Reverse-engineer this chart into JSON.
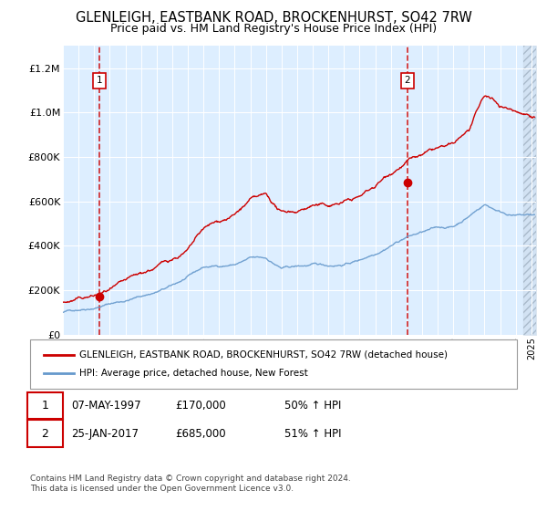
{
  "title": "GLENLEIGH, EASTBANK ROAD, BROCKENHURST, SO42 7RW",
  "subtitle": "Price paid vs. HM Land Registry's House Price Index (HPI)",
  "legend_line1": "GLENLEIGH, EASTBANK ROAD, BROCKENHURST, SO42 7RW (detached house)",
  "legend_line2": "HPI: Average price, detached house, New Forest",
  "annotation1_date": "07-MAY-1997",
  "annotation1_price": "£170,000",
  "annotation1_pct": "50% ↑ HPI",
  "annotation2_date": "25-JAN-2017",
  "annotation2_price": "£685,000",
  "annotation2_pct": "51% ↑ HPI",
  "copyright": "Contains HM Land Registry data © Crown copyright and database right 2024.\nThis data is licensed under the Open Government Licence v3.0.",
  "red_line_color": "#cc0000",
  "blue_line_color": "#6699cc",
  "plot_bg_color": "#ddeeff",
  "dashed_line_color": "#cc0000",
  "marker_color": "#cc0000",
  "ylim_min": 0,
  "ylim_max": 1300000,
  "sale1_year": 1997.35,
  "sale1_price": 170000,
  "sale2_year": 2017.07,
  "sale2_price": 685000,
  "hpi_waypoints_x": [
    1995,
    1996,
    1997,
    1998,
    1999,
    2000,
    2001,
    2002,
    2003,
    2004,
    2005,
    2006,
    2007,
    2008,
    2009,
    2010,
    2011,
    2012,
    2013,
    2014,
    2015,
    2016,
    2017,
    2018,
    2019,
    2020,
    2021,
    2022,
    2023,
    2024,
    2025
  ],
  "hpi_waypoints_y": [
    100000,
    115000,
    130000,
    150000,
    165000,
    185000,
    205000,
    230000,
    265000,
    305000,
    310000,
    320000,
    345000,
    340000,
    295000,
    300000,
    305000,
    300000,
    310000,
    330000,
    365000,
    410000,
    450000,
    470000,
    485000,
    490000,
    540000,
    595000,
    565000,
    550000,
    548000
  ],
  "prop_waypoints_x": [
    1995,
    1996,
    1997,
    1997.35,
    1998,
    1999,
    2000,
    2001,
    2002,
    2003,
    2004,
    2005,
    2006,
    2007,
    2008,
    2009,
    2010,
    2011,
    2012,
    2013,
    2014,
    2015,
    2016,
    2017.07,
    2018,
    2019,
    2020,
    2021,
    2022,
    2023,
    2024,
    2025
  ],
  "prop_waypoints_y": [
    145000,
    155000,
    165000,
    170000,
    185000,
    200000,
    220000,
    250000,
    285000,
    320000,
    405000,
    430000,
    460000,
    520000,
    525000,
    440000,
    450000,
    480000,
    470000,
    490000,
    510000,
    555000,
    620000,
    685000,
    700000,
    720000,
    720000,
    780000,
    920000,
    870000,
    850000,
    840000
  ]
}
